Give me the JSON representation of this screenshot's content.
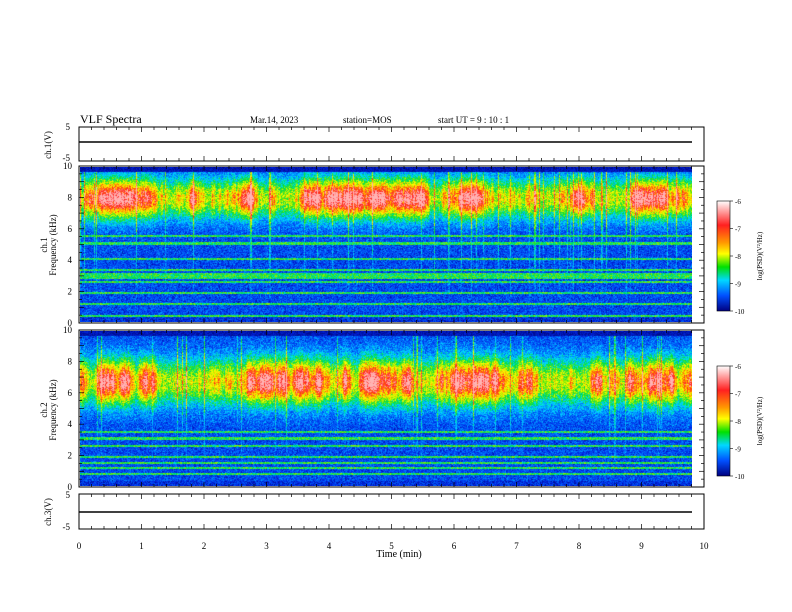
{
  "header": {
    "title": "VLF Spectra",
    "date": "Mar.14, 2023",
    "station": "station=MOS",
    "start": "start UT =  9 : 10 : 1"
  },
  "xaxis": {
    "label": "Time (min)",
    "ticks": [
      "0",
      "1",
      "2",
      "3",
      "4",
      "5",
      "6",
      "7",
      "8",
      "9",
      "10"
    ]
  },
  "panels": {
    "ch1v": {
      "label": "ch.1(V)",
      "ticks": [
        "5",
        "-5"
      ]
    },
    "ch1": {
      "label1": "ch.1",
      "label2": "Frequency (kHz)",
      "ticks": [
        "0",
        "2",
        "4",
        "6",
        "8",
        "10"
      ]
    },
    "ch2": {
      "label1": "ch.2",
      "label2": "Frequency (kHz)",
      "ticks": [
        "0",
        "2",
        "4",
        "6",
        "8",
        "10"
      ]
    },
    "ch3v": {
      "label": "ch.3(V)",
      "ticks": [
        "5",
        "-5"
      ]
    }
  },
  "colorbar": {
    "label": "log(PSD)(V²/Hz)",
    "ticks": [
      "-6",
      "-7",
      "-8",
      "-9",
      "-10"
    ]
  },
  "chart_data": [
    {
      "type": "line",
      "title": "ch.1(V)",
      "xlabel": "Time (min)",
      "ylabel": "ch.1(V)",
      "xlim": [
        0,
        10
      ],
      "ylim": [
        -5,
        5
      ],
      "series": [
        {
          "x": [
            0,
            9.8
          ],
          "values": [
            0,
            0
          ]
        }
      ]
    },
    {
      "type": "heatmap",
      "title": "ch.1",
      "xlabel": "Time (min)",
      "ylabel": "Frequency (kHz)",
      "xlim": [
        0,
        10
      ],
      "ylim": [
        0,
        10
      ],
      "zlabel": "log(PSD)(V²/Hz)",
      "zlim": [
        -10,
        -6
      ],
      "peak_band_khz": [
        6.5,
        9.5
      ],
      "narrowband_lines_khz": [
        0.4,
        1.2,
        1.9,
        2.6,
        2.9,
        3.1,
        3.4,
        4.1,
        5.1,
        5.6
      ]
    },
    {
      "type": "heatmap",
      "title": "ch.2",
      "xlabel": "Time (min)",
      "ylabel": "Frequency (kHz)",
      "xlim": [
        0,
        10
      ],
      "ylim": [
        0,
        10
      ],
      "zlabel": "log(PSD)(V²/Hz)",
      "zlim": [
        -10,
        -6
      ],
      "peak_band_khz": [
        5.0,
        8.5
      ],
      "narrowband_lines_khz": [
        0.8,
        1.2,
        1.5,
        1.9,
        2.6,
        3.1,
        3.5
      ]
    },
    {
      "type": "line",
      "title": "ch.3(V)",
      "xlabel": "Time (min)",
      "ylabel": "ch.3(V)",
      "xlim": [
        0,
        10
      ],
      "ylim": [
        -5,
        5
      ],
      "series": [
        {
          "x": [
            0,
            9.8
          ],
          "values": [
            0,
            0
          ]
        }
      ]
    }
  ]
}
